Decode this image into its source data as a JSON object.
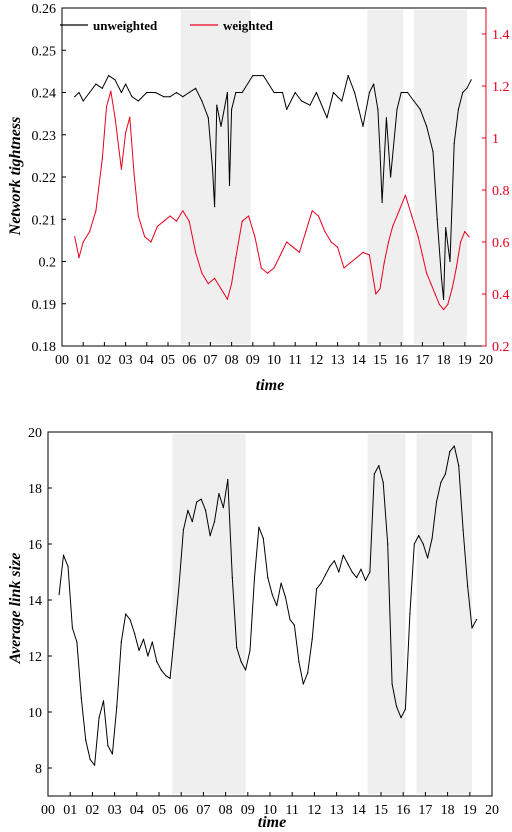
{
  "chart_data": [
    {
      "type": "line",
      "xlabel": "time",
      "ylabel": "Network tightness",
      "x_ticks": [
        "00",
        "01",
        "02",
        "03",
        "04",
        "05",
        "06",
        "07",
        "08",
        "09",
        "10",
        "11",
        "12",
        "13",
        "14",
        "15",
        "16",
        "17",
        "18",
        "19",
        "20"
      ],
      "xlim": [
        0,
        20
      ],
      "ylim": [
        0.18,
        0.26
      ],
      "y_ticks": [
        "0.18",
        "0.19",
        "0.2",
        "0.21",
        "0.22",
        "0.23",
        "0.24",
        "0.25",
        "0.26"
      ],
      "y2lim": [
        0.2,
        1.5
      ],
      "y2_ticks": [
        "0.2",
        "0.4",
        "0.6",
        "0.8",
        "1",
        "1.2",
        "1.4"
      ],
      "legend_position": "top-left",
      "shaded_intervals": [
        [
          5.6,
          8.9
        ],
        [
          14.4,
          16.1
        ],
        [
          16.6,
          19.1
        ]
      ],
      "colors": {
        "unweighted": "#000000",
        "weighted": "#e8001e",
        "shade": "#efefef"
      },
      "series": [
        {
          "name": "unweighted",
          "axis": "left",
          "x": [
            0.6,
            0.8,
            1.0,
            1.3,
            1.6,
            1.9,
            2.2,
            2.5,
            2.8,
            3.0,
            3.3,
            3.6,
            4.0,
            4.4,
            4.8,
            5.1,
            5.4,
            5.7,
            6.0,
            6.3,
            6.6,
            6.9,
            7.1,
            7.2,
            7.3,
            7.5,
            7.8,
            7.9,
            8.0,
            8.2,
            8.5,
            9.0,
            9.5,
            10.0,
            10.4,
            10.6,
            11.0,
            11.3,
            11.7,
            12.0,
            12.5,
            12.8,
            13.2,
            13.5,
            13.8,
            14.0,
            14.2,
            14.5,
            14.7,
            14.9,
            15.0,
            15.1,
            15.3,
            15.5,
            15.8,
            16.0,
            16.3,
            16.6,
            16.9,
            17.2,
            17.5,
            17.7,
            17.9,
            18.0,
            18.1,
            18.3,
            18.5,
            18.7,
            18.9,
            19.1,
            19.3
          ],
          "y": [
            0.239,
            0.24,
            0.238,
            0.24,
            0.242,
            0.241,
            0.244,
            0.243,
            0.24,
            0.242,
            0.239,
            0.238,
            0.24,
            0.24,
            0.239,
            0.239,
            0.24,
            0.239,
            0.24,
            0.241,
            0.238,
            0.234,
            0.222,
            0.213,
            0.237,
            0.232,
            0.24,
            0.218,
            0.236,
            0.24,
            0.24,
            0.244,
            0.244,
            0.24,
            0.24,
            0.236,
            0.24,
            0.238,
            0.237,
            0.24,
            0.234,
            0.24,
            0.238,
            0.244,
            0.24,
            0.236,
            0.232,
            0.24,
            0.242,
            0.236,
            0.226,
            0.214,
            0.234,
            0.22,
            0.236,
            0.24,
            0.24,
            0.238,
            0.236,
            0.232,
            0.226,
            0.21,
            0.196,
            0.191,
            0.208,
            0.2,
            0.228,
            0.236,
            0.24,
            0.241,
            0.243
          ]
        },
        {
          "name": "weighted",
          "axis": "right",
          "x": [
            0.6,
            0.8,
            1.0,
            1.3,
            1.6,
            1.9,
            2.1,
            2.3,
            2.5,
            2.8,
            3.0,
            3.2,
            3.4,
            3.6,
            3.9,
            4.2,
            4.5,
            4.8,
            5.1,
            5.4,
            5.7,
            6.0,
            6.3,
            6.6,
            6.9,
            7.2,
            7.5,
            7.8,
            8.0,
            8.2,
            8.5,
            8.8,
            9.1,
            9.4,
            9.7,
            10.0,
            10.3,
            10.6,
            10.9,
            11.2,
            11.5,
            11.8,
            12.1,
            12.4,
            12.7,
            13.0,
            13.3,
            13.6,
            13.9,
            14.2,
            14.5,
            14.8,
            15.0,
            15.2,
            15.4,
            15.6,
            15.9,
            16.2,
            16.5,
            16.8,
            17.0,
            17.2,
            17.4,
            17.6,
            17.8,
            18.0,
            18.2,
            18.4,
            18.6,
            18.8,
            19.0,
            19.2
          ],
          "y": [
            0.62,
            0.54,
            0.6,
            0.64,
            0.72,
            0.92,
            1.12,
            1.18,
            1.08,
            0.88,
            1.02,
            1.08,
            0.86,
            0.7,
            0.62,
            0.6,
            0.66,
            0.68,
            0.7,
            0.68,
            0.72,
            0.68,
            0.56,
            0.48,
            0.44,
            0.46,
            0.42,
            0.38,
            0.44,
            0.54,
            0.68,
            0.7,
            0.62,
            0.5,
            0.48,
            0.5,
            0.55,
            0.6,
            0.58,
            0.56,
            0.64,
            0.72,
            0.7,
            0.64,
            0.6,
            0.58,
            0.5,
            0.52,
            0.54,
            0.56,
            0.55,
            0.4,
            0.42,
            0.52,
            0.6,
            0.66,
            0.72,
            0.78,
            0.7,
            0.62,
            0.55,
            0.48,
            0.44,
            0.4,
            0.36,
            0.34,
            0.36,
            0.42,
            0.5,
            0.6,
            0.64,
            0.62
          ]
        }
      ]
    },
    {
      "type": "line",
      "xlabel": "time",
      "ylabel": "Average link size",
      "x_ticks": [
        "00",
        "01",
        "02",
        "03",
        "04",
        "05",
        "06",
        "07",
        "08",
        "09",
        "10",
        "11",
        "12",
        "13",
        "14",
        "15",
        "16",
        "17",
        "18",
        "19",
        "20"
      ],
      "xlim": [
        0,
        20
      ],
      "ylim": [
        7,
        20
      ],
      "y_ticks": [
        "8",
        "10",
        "12",
        "14",
        "16",
        "18",
        "20"
      ],
      "shaded_intervals": [
        [
          5.6,
          8.9
        ],
        [
          14.4,
          16.1
        ],
        [
          16.6,
          19.1
        ]
      ],
      "colors": {
        "line": "#000000",
        "shade": "#efefef"
      },
      "series": [
        {
          "name": "",
          "x": [
            0.5,
            0.7,
            0.9,
            1.1,
            1.3,
            1.5,
            1.7,
            1.9,
            2.1,
            2.3,
            2.5,
            2.7,
            2.9,
            3.1,
            3.3,
            3.5,
            3.7,
            3.9,
            4.1,
            4.3,
            4.5,
            4.7,
            4.9,
            5.1,
            5.3,
            5.5,
            5.7,
            5.9,
            6.1,
            6.3,
            6.5,
            6.7,
            6.9,
            7.1,
            7.3,
            7.5,
            7.7,
            7.9,
            8.1,
            8.3,
            8.5,
            8.7,
            8.9,
            9.1,
            9.3,
            9.5,
            9.7,
            9.9,
            10.1,
            10.3,
            10.5,
            10.7,
            10.9,
            11.1,
            11.3,
            11.5,
            11.7,
            11.9,
            12.1,
            12.3,
            12.5,
            12.7,
            12.9,
            13.1,
            13.3,
            13.5,
            13.7,
            13.9,
            14.1,
            14.3,
            14.5,
            14.7,
            14.9,
            15.1,
            15.3,
            15.5,
            15.7,
            15.9,
            16.1,
            16.3,
            16.5,
            16.7,
            16.9,
            17.1,
            17.3,
            17.5,
            17.7,
            17.9,
            18.1,
            18.3,
            18.5,
            18.7,
            18.9,
            19.1,
            19.3
          ],
          "y": [
            14.2,
            15.6,
            15.2,
            13.0,
            12.5,
            10.5,
            9.0,
            8.3,
            8.1,
            9.8,
            10.4,
            8.8,
            8.5,
            10.2,
            12.5,
            13.5,
            13.3,
            12.8,
            12.2,
            12.6,
            12.0,
            12.5,
            11.8,
            11.5,
            11.3,
            11.2,
            12.8,
            14.5,
            16.5,
            17.2,
            16.8,
            17.5,
            17.6,
            17.2,
            16.3,
            16.8,
            17.8,
            17.3,
            18.3,
            14.8,
            12.3,
            11.8,
            11.5,
            12.2,
            14.8,
            16.6,
            16.2,
            14.8,
            14.2,
            13.8,
            14.6,
            14.1,
            13.3,
            13.1,
            11.8,
            11.0,
            11.4,
            12.6,
            14.4,
            14.6,
            14.9,
            15.2,
            15.4,
            15.0,
            15.6,
            15.3,
            15.0,
            14.8,
            15.1,
            14.7,
            15.0,
            18.5,
            18.8,
            18.2,
            16.0,
            11.0,
            10.2,
            9.8,
            10.1,
            13.5,
            16.0,
            16.3,
            16.0,
            15.5,
            16.2,
            17.5,
            18.2,
            18.5,
            19.3,
            19.5,
            18.8,
            16.5,
            14.5,
            13.0,
            13.3
          ]
        }
      ]
    }
  ]
}
